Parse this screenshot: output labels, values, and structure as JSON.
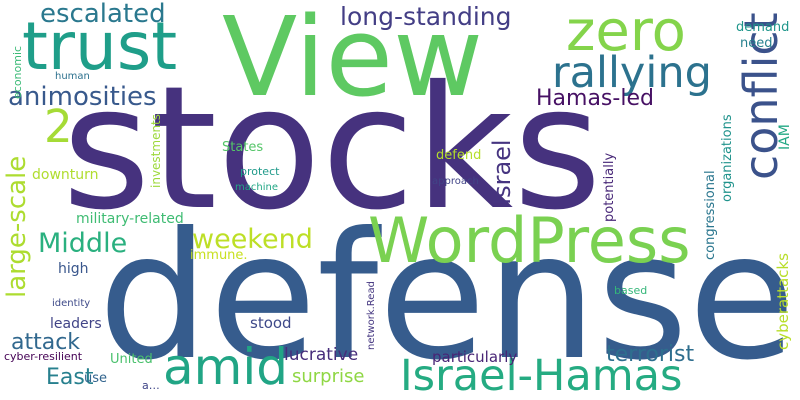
{
  "words": [
    {
      "text": "stocks",
      "color": "#46327e"
    },
    {
      "text": "defense",
      "color": "#365c8d"
    },
    {
      "text": "View",
      "color": "#5ec962"
    },
    {
      "text": "WordPress",
      "color": "#7ad151"
    },
    {
      "text": "trust",
      "color": "#1f9e89"
    },
    {
      "text": "zero",
      "color": "#84d44b"
    },
    {
      "text": "Israel-Hamas",
      "color": "#25ab82"
    },
    {
      "text": "amid",
      "color": "#21a585"
    },
    {
      "text": "conflict",
      "color": "#3b528b"
    },
    {
      "text": "rallying",
      "color": "#2c728e"
    },
    {
      "text": "escalated",
      "color": "#2a788e"
    },
    {
      "text": "long-standing",
      "color": "#433e85"
    },
    {
      "text": "animosities",
      "color": "#38598c"
    },
    {
      "text": "Hamas-led",
      "color": "#471164"
    },
    {
      "text": "2",
      "color": "#a5db36"
    },
    {
      "text": "large-scale",
      "color": "#addc30"
    },
    {
      "text": "Middle",
      "color": "#2ab07f"
    },
    {
      "text": "weekend",
      "color": "#bddf26"
    },
    {
      "text": "Israel",
      "color": "#463480"
    },
    {
      "text": "terrorist",
      "color": "#2e6e8e"
    },
    {
      "text": "attack",
      "color": "#31688e"
    },
    {
      "text": "East",
      "color": "#27808e"
    },
    {
      "text": "surprise",
      "color": "#8fd744"
    },
    {
      "text": "lucrative",
      "color": "#472d7b"
    },
    {
      "text": "particularly",
      "color": "#482475"
    },
    {
      "text": "stood",
      "color": "#3e4989"
    },
    {
      "text": "leaders",
      "color": "#414487"
    },
    {
      "text": "high",
      "color": "#39568c"
    },
    {
      "text": "military-related",
      "color": "#3fbc73"
    },
    {
      "text": "downturn",
      "color": "#b0dd2f"
    },
    {
      "text": "States",
      "color": "#54c568"
    },
    {
      "text": "defend",
      "color": "#b5de2b"
    },
    {
      "text": "immune.",
      "color": "#c8e020"
    },
    {
      "text": "United",
      "color": "#4ac16d"
    },
    {
      "text": "cyber-resilient",
      "color": "#440154"
    },
    {
      "text": "cyberattacks",
      "color": "#b8de29"
    },
    {
      "text": "potentially",
      "color": "#482878"
    },
    {
      "text": "congressional",
      "color": "#2a768e"
    },
    {
      "text": "organizations",
      "color": "#20938c"
    },
    {
      "text": "IAM",
      "color": "#22a884"
    },
    {
      "text": "demand",
      "color": "#1f968b"
    },
    {
      "text": "need",
      "color": "#26818e"
    },
    {
      "text": "economic",
      "color": "#3aba76"
    },
    {
      "text": "human",
      "color": "#2d718e"
    },
    {
      "text": "investments",
      "color": "#9dd93b"
    },
    {
      "text": "protect",
      "color": "#1f9a8a"
    },
    {
      "text": "machine",
      "color": "#22a785"
    },
    {
      "text": "approach",
      "color": "#414487"
    },
    {
      "text": "identity",
      "color": "#3e4a89"
    },
    {
      "text": "network.Read",
      "color": "#453781"
    },
    {
      "text": "based",
      "color": "#34b679"
    },
    {
      "text": "use",
      "color": "#32648e"
    },
    {
      "text": "a…",
      "color": "#404688"
    }
  ]
}
